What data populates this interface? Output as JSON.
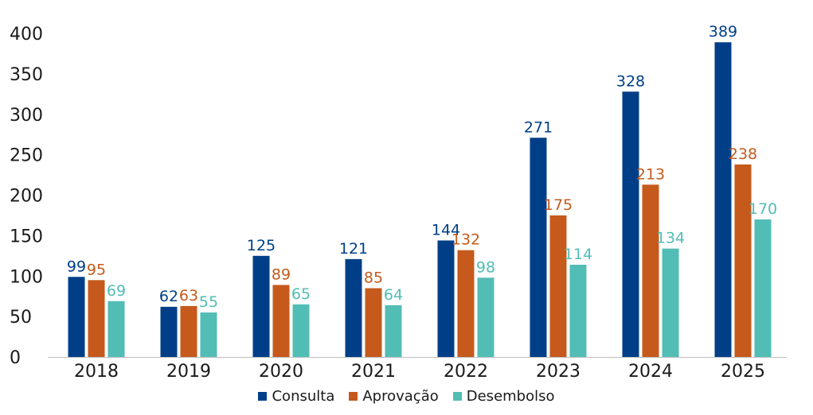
{
  "chart_data": {
    "type": "bar",
    "categories": [
      "2018",
      "2019",
      "2020",
      "2021",
      "2022",
      "2023",
      "2024",
      "2025"
    ],
    "series": [
      {
        "name": "Consulta",
        "values": [
          99,
          62,
          125,
          121,
          144,
          271,
          328,
          389
        ],
        "color": "#003F87"
      },
      {
        "name": "Aprovação",
        "values": [
          95,
          63,
          89,
          85,
          132,
          175,
          213,
          238
        ],
        "color": "#C55A1C"
      },
      {
        "name": "Desembolso",
        "values": [
          69,
          55,
          65,
          64,
          98,
          114,
          134,
          170
        ],
        "color": "#52BDB5"
      }
    ],
    "y_ticks": [
      "0",
      "50",
      "100",
      "150",
      "200",
      "250",
      "300",
      "350",
      "400"
    ],
    "ylim": [
      0,
      400
    ],
    "grid": false,
    "legend_position": "bottom"
  }
}
